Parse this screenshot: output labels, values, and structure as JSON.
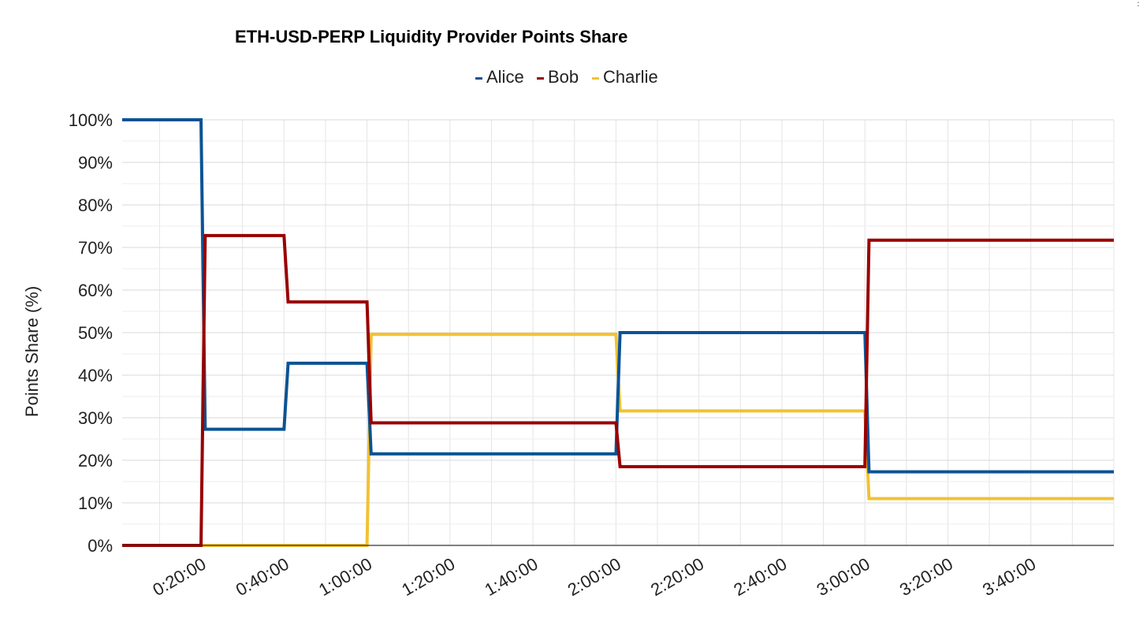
{
  "chart_data": {
    "type": "line",
    "title": "ETH-USD-PERP Liquidity Provider Points Share",
    "xlabel": "",
    "ylabel": "Points Share (%)",
    "ylim": [
      0,
      100
    ],
    "y_ticks": [
      "0%",
      "10%",
      "20%",
      "30%",
      "40%",
      "50%",
      "60%",
      "70%",
      "80%",
      "90%",
      "100%"
    ],
    "x_ticks": [
      {
        "t": 20,
        "label": "0:20:00"
      },
      {
        "t": 40,
        "label": "0:40:00"
      },
      {
        "t": 60,
        "label": "1:00:00"
      },
      {
        "t": 80,
        "label": "1:20:00"
      },
      {
        "t": 100,
        "label": "1:40:00"
      },
      {
        "t": 120,
        "label": "2:00:00"
      },
      {
        "t": 140,
        "label": "2:20:00"
      },
      {
        "t": 160,
        "label": "2:40:00"
      },
      {
        "t": 180,
        "label": "3:00:00"
      },
      {
        "t": 200,
        "label": "3:20:00"
      },
      {
        "t": 220,
        "label": "3:40:00"
      }
    ],
    "xlim": [
      1,
      240
    ],
    "grid": true,
    "legend_position": "top",
    "series": [
      {
        "name": "Alice",
        "color": "#0b5394",
        "points": [
          [
            1,
            100
          ],
          [
            20,
            100
          ],
          [
            21,
            27.3
          ],
          [
            40,
            27.3
          ],
          [
            41,
            42.8
          ],
          [
            60,
            42.8
          ],
          [
            61,
            21.5
          ],
          [
            120,
            21.5
          ],
          [
            121,
            50
          ],
          [
            180,
            50
          ],
          [
            181,
            17.3
          ],
          [
            240,
            17.3
          ]
        ]
      },
      {
        "name": "Bob",
        "color": "#990000",
        "points": [
          [
            1,
            0
          ],
          [
            20,
            0
          ],
          [
            21,
            72.8
          ],
          [
            40,
            72.8
          ],
          [
            41,
            57.2
          ],
          [
            60,
            57.2
          ],
          [
            61,
            28.8
          ],
          [
            120,
            28.8
          ],
          [
            121,
            18.5
          ],
          [
            180,
            18.5
          ],
          [
            181,
            71.7
          ],
          [
            240,
            71.7
          ]
        ]
      },
      {
        "name": "Charlie",
        "color": "#f1c232",
        "points": [
          [
            1,
            0
          ],
          [
            60,
            0
          ],
          [
            61,
            49.6
          ],
          [
            120,
            49.6
          ],
          [
            121,
            31.6
          ],
          [
            180,
            31.6
          ],
          [
            181,
            11
          ],
          [
            240,
            11
          ]
        ]
      }
    ]
  }
}
